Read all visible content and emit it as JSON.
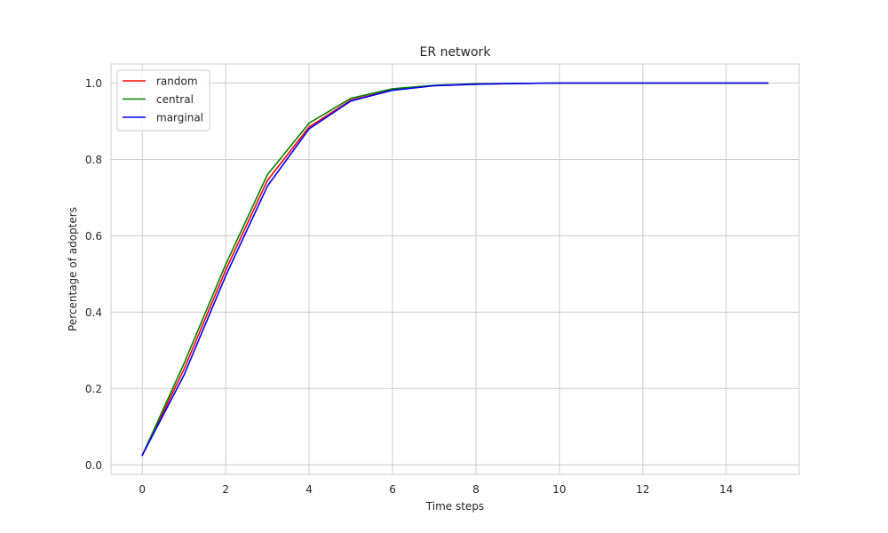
{
  "chart_data": {
    "type": "line",
    "title": "ER network",
    "xlabel": "Time steps",
    "ylabel": "Percentage of adopters",
    "xlim": [
      -0.75,
      15.75
    ],
    "ylim": [
      -0.025,
      1.05
    ],
    "xticks": [
      0,
      2,
      4,
      6,
      8,
      10,
      12,
      14
    ],
    "xtick_labels": [
      "0",
      "2",
      "4",
      "6",
      "8",
      "10",
      "12",
      "14"
    ],
    "yticks": [
      0.0,
      0.2,
      0.4,
      0.6,
      0.8,
      1.0
    ],
    "ytick_labels": [
      "0.0",
      "0.2",
      "0.4",
      "0.6",
      "0.8",
      "1.0"
    ],
    "grid": true,
    "legend_position": "top-left",
    "x": [
      0,
      1,
      2,
      3,
      4,
      5,
      6,
      7,
      8,
      9,
      10,
      11,
      12,
      13,
      14,
      15
    ],
    "series": [
      {
        "name": "random",
        "color": "#ff0000",
        "values": [
          0.025,
          0.25,
          0.51,
          0.745,
          0.885,
          0.955,
          0.982,
          0.993,
          0.997,
          0.999,
          1.0,
          1.0,
          1.0,
          1.0,
          1.0,
          1.0
        ]
      },
      {
        "name": "central",
        "color": "#008000",
        "values": [
          0.025,
          0.265,
          0.525,
          0.76,
          0.895,
          0.96,
          0.985,
          0.994,
          0.998,
          0.999,
          1.0,
          1.0,
          1.0,
          1.0,
          1.0,
          1.0
        ]
      },
      {
        "name": "marginal",
        "color": "#0000ff",
        "values": [
          0.025,
          0.235,
          0.495,
          0.73,
          0.88,
          0.953,
          0.981,
          0.993,
          0.997,
          0.999,
          1.0,
          1.0,
          1.0,
          1.0,
          1.0,
          1.0
        ]
      }
    ]
  }
}
